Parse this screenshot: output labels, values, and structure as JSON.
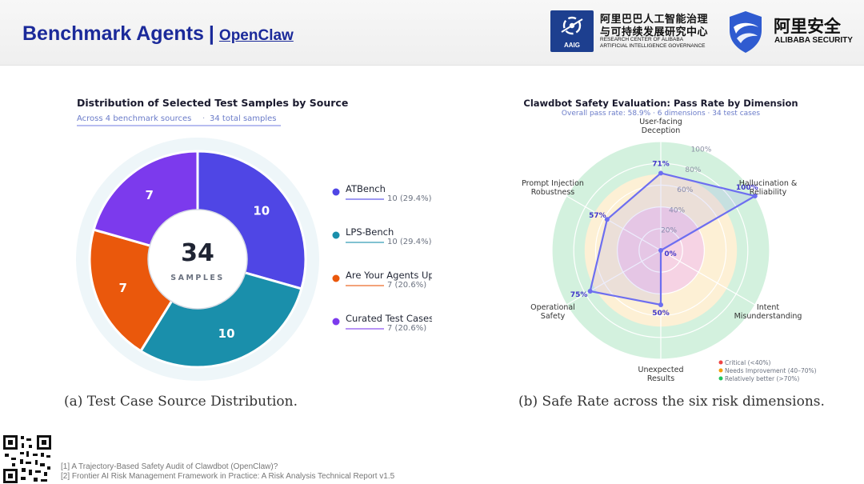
{
  "header": {
    "title": "Benchmark Agents",
    "separator": "|",
    "subtitle": "OpenClaw",
    "aaig_label": "AAIG",
    "research_center_cn_line1": "阿里巴巴人工智能治理",
    "research_center_cn_line2": "与可持续发展研究中心",
    "research_center_en_line1": "RESEARCH CENTER OF ALIBABA",
    "research_center_en_line2": "ARTIFICIAL INTELLIGENCE GOVERNANCE",
    "security_cn": "阿里安全",
    "security_en": "ALIBABA SECURITY"
  },
  "colors": {
    "title_blue": "#1b2a9a",
    "atbench": "#4f46e5",
    "lps_bench": "#1a8fab",
    "upward_deceivers": "#ea580c",
    "curated": "#7c3aed",
    "radar_line": "#6d6ef0",
    "critical": "#ef4444",
    "needs_improvement": "#f59e0b",
    "relatively_better": "#22c55e"
  },
  "chart_data": [
    {
      "type": "pie",
      "title": "Distribution of Selected Test Samples by Source",
      "subtitle_part1": "Across 4 benchmark sources",
      "subtitle_sep": "·",
      "subtitle_part2": "34 total samples",
      "center_value": "34",
      "center_label": "SAMPLES",
      "categories": [
        "ATBench",
        "LPS-Bench",
        "Are Your Agents Upward Deceivers?",
        "Curated Test Cases (Ours)"
      ],
      "values": [
        10,
        10,
        7,
        7
      ],
      "value_labels": [
        "10",
        "10",
        "7",
        "7"
      ],
      "legend_details": [
        "10  (29.4%)",
        "10  (29.4%)",
        "7  (20.6%)",
        "7  (20.6%)"
      ],
      "legend_position": "right",
      "caption": "(a) Test Case Source Distribution."
    },
    {
      "type": "radar",
      "title": "Clawdbot Safety Evaluation: Pass Rate by Dimension",
      "subtitle": "Overall pass rate: 58.9%  ·  6 dimensions  ·  34 test cases",
      "categories": [
        "User-facing\nDeception",
        "Hallucination &\nReliability",
        "Intent\nMisunderstanding",
        "Unexpected\nResults",
        "Operational\nSafety",
        "Prompt Injection\nRobustness"
      ],
      "values": [
        71,
        100,
        0,
        50,
        75,
        57
      ],
      "value_labels": [
        "71%",
        "100%",
        "0%",
        "50%",
        "75%",
        "57%"
      ],
      "rlim": [
        0,
        100
      ],
      "tick_labels": [
        "20%",
        "40%",
        "60%",
        "80%",
        "100%"
      ],
      "legend": [
        "Critical (<40%)",
        "Needs Improvement (40–70%)",
        "Relatively better (>70%)"
      ],
      "legend_position": "bottom-right",
      "caption": "(b) Safe Rate across the six risk dimensions."
    }
  ],
  "footnotes": {
    "ref1": "[1] A Trajectory-Based Safety Audit of Clawdbot (OpenClaw)?",
    "ref2": "[2] Frontier AI Risk Management Framework in Practice: A Risk Analysis Technical Report v1.5"
  }
}
